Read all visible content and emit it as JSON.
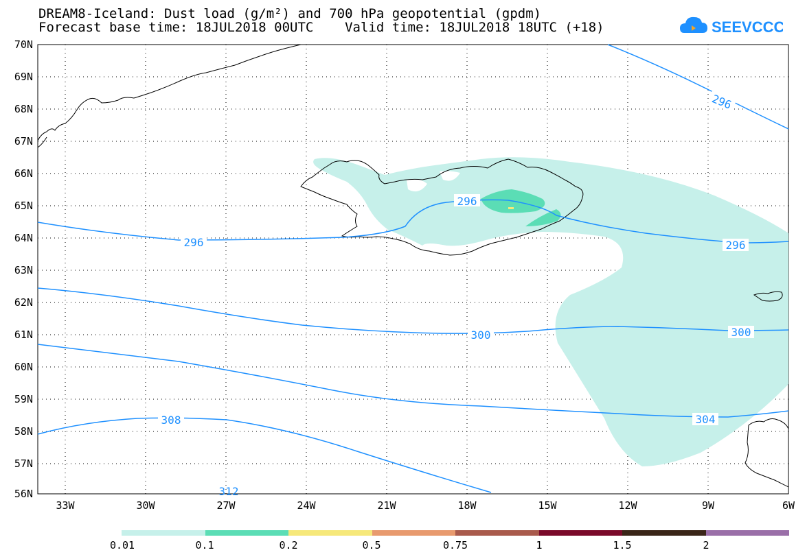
{
  "title": {
    "line1": "DREAM8-Iceland: Dust load (g/m²) and 700 hPa geopotential (gpdm)",
    "line2": "Forecast base time: 18JUL2018 00UTC    Valid time: 18JUL2018 18UTC (+18)"
  },
  "logo": {
    "text": "SEEVCCC",
    "icon": "cloud-icon",
    "color": "#1E90FF"
  },
  "map": {
    "lat_labels": [
      "70N",
      "69N",
      "68N",
      "67N",
      "66N",
      "65N",
      "64N",
      "63N",
      "62N",
      "61N",
      "60N",
      "59N",
      "58N",
      "57N",
      "56N"
    ],
    "lon_labels": [
      "33W",
      "30W",
      "27W",
      "24W",
      "21W",
      "18W",
      "15W",
      "12W",
      "9W",
      "6W"
    ],
    "contour_labels": [
      "296",
      "296",
      "296",
      "296",
      "300",
      "300",
      "304",
      "308",
      "312"
    ],
    "coastline_color": "#000000",
    "contour_color": "#1E90FF"
  },
  "legend": {
    "colors": [
      "#C6F0EA",
      "#5BDDB5",
      "#F6E87A",
      "#E89A6E",
      "#A95A4C",
      "#7A0A2A",
      "#3A2518",
      "#9A6FA8"
    ],
    "ticks": [
      "0.01",
      "0.1",
      "0.2",
      "0.5",
      "0.75",
      "1",
      "1.5",
      "2"
    ]
  }
}
